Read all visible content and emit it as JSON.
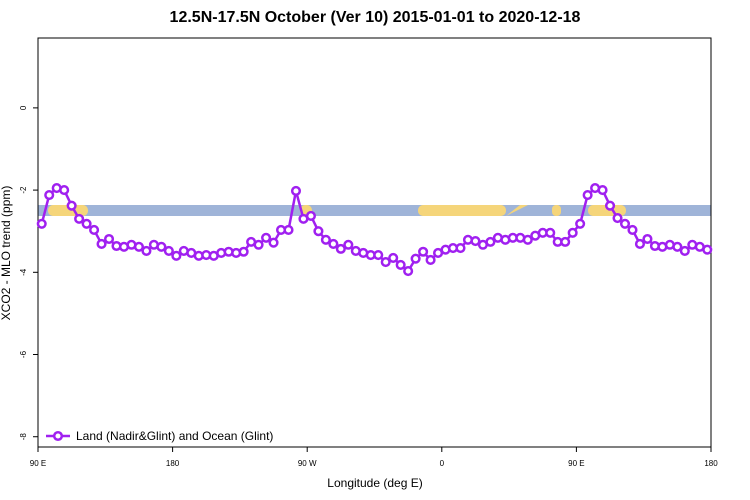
{
  "chart_data": {
    "type": "line",
    "title": "12.5N-17.5N October (Ver 10)   2015-01-01 to 2020-12-18",
    "x_label": "Longitude (deg E)",
    "y_label": "XCO2 - MLO trend (ppm)",
    "xlim": [
      90,
      540
    ],
    "ylim": [
      -8.25,
      1.7
    ],
    "xticks": [
      {
        "value": 90,
        "label": "90 E"
      },
      {
        "value": 180,
        "label": "180"
      },
      {
        "value": 270,
        "label": "90 W"
      },
      {
        "value": 360,
        "label": "0"
      },
      {
        "value": 450,
        "label": "90 E"
      },
      {
        "value": 540,
        "label": "180"
      }
    ],
    "yticks": [
      0,
      -2,
      -4,
      -6,
      -8
    ],
    "grid": false,
    "legend": "bottom-left",
    "x": [
      92.5,
      97.5,
      102.5,
      107.5,
      112.5,
      117.5,
      122.5,
      127.5,
      132.5,
      137.5,
      142.5,
      147.5,
      152.5,
      157.5,
      162.5,
      167.5,
      172.5,
      177.5,
      182.5,
      187.5,
      192.5,
      197.5,
      202.5,
      207.5,
      212.5,
      217.5,
      222.5,
      227.5,
      232.5,
      237.5,
      242.5,
      247.5,
      252.5,
      257.5,
      262.5,
      267.5,
      272.5,
      277.5,
      282.5,
      287.5,
      292.5,
      297.5,
      302.5,
      307.5,
      312.5,
      317.5,
      322.5,
      327.5,
      332.5,
      337.5,
      342.5,
      347.5,
      352.5,
      357.5,
      362.5,
      367.5,
      372.5,
      377.5,
      382.5,
      387.5,
      392.5,
      397.5,
      402.5,
      407.5,
      412.5,
      417.5,
      422.5,
      427.5,
      432.5,
      437.5,
      442.5,
      447.5,
      452.5,
      457.5,
      462.5,
      467.5,
      472.5,
      477.5,
      482.5,
      487.5,
      492.5,
      497.5,
      502.5,
      507.5,
      512.5,
      517.5,
      522.5,
      527.5,
      532.5,
      537.5
    ],
    "series": [
      {
        "name": "Land (Nadir&Glint) and Ocean (Glint)",
        "color": "#a020f0",
        "values": [
          -2.82,
          -2.12,
          -1.95,
          -2.0,
          -2.38,
          -2.7,
          -2.82,
          -2.97,
          -3.31,
          -3.19,
          -3.36,
          -3.38,
          -3.33,
          -3.38,
          -3.48,
          -3.33,
          -3.38,
          -3.48,
          -3.6,
          -3.48,
          -3.53,
          -3.6,
          -3.58,
          -3.6,
          -3.53,
          -3.5,
          -3.53,
          -3.5,
          -3.26,
          -3.33,
          -3.16,
          -3.28,
          -2.97,
          -2.97,
          -2.02,
          -2.7,
          -2.63,
          -3.0,
          -3.21,
          -3.31,
          -3.43,
          -3.33,
          -3.48,
          -3.53,
          -3.58,
          -3.58,
          -3.75,
          -3.65,
          -3.82,
          -3.97,
          -3.67,
          -3.5,
          -3.7,
          -3.53,
          -3.45,
          -3.41,
          -3.41,
          -3.21,
          -3.24,
          -3.33,
          -3.26,
          -3.16,
          -3.21,
          -3.16,
          -3.16,
          -3.21,
          -3.11,
          -3.04,
          -3.04,
          -3.26,
          -3.26,
          -3.04,
          -2.82,
          -2.12,
          -1.95,
          -2.0,
          -2.38,
          -2.68,
          -2.82,
          -2.97,
          -3.31,
          -3.19,
          -3.36,
          -3.38,
          -3.33,
          -3.38,
          -3.48,
          -3.33,
          -3.38,
          -3.45
        ]
      }
    ]
  }
}
